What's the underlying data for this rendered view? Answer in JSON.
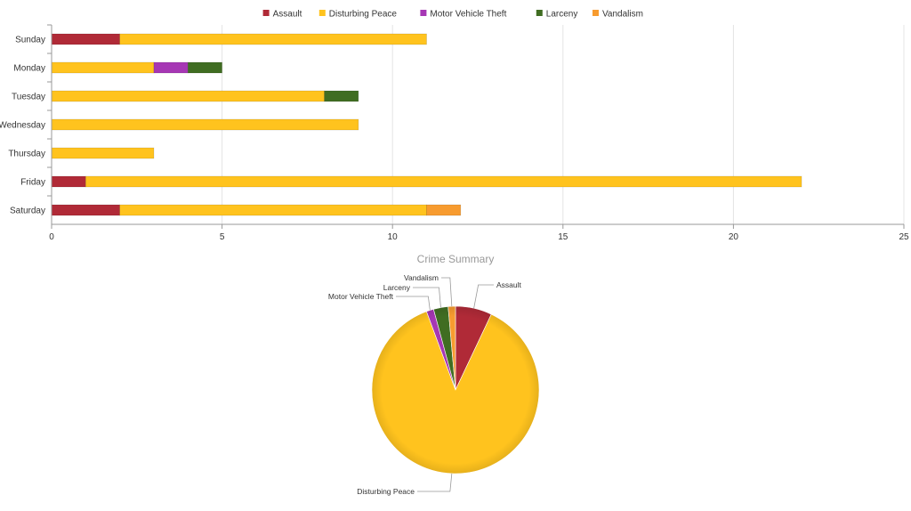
{
  "colors": {
    "Assault": "#b02a37",
    "Disturbing Peace": "#ffc31e",
    "Motor Vehicle Theft": "#a637b4",
    "Larceny": "#406d22",
    "Vandalism": "#f79b2f"
  },
  "chart_data": [
    {
      "type": "bar",
      "orientation": "horizontal",
      "stacked": true,
      "title": "",
      "xlabel": "",
      "ylabel": "",
      "categories": [
        "Sunday",
        "Monday",
        "Tuesday",
        "Wednesday",
        "Thursday",
        "Friday",
        "Saturday"
      ],
      "series": [
        {
          "name": "Assault",
          "values": [
            2,
            0,
            0,
            0,
            0,
            1,
            2
          ]
        },
        {
          "name": "Disturbing Peace",
          "values": [
            9,
            3,
            8,
            9,
            3,
            21,
            9
          ]
        },
        {
          "name": "Motor Vehicle Theft",
          "values": [
            0,
            1,
            0,
            0,
            0,
            0,
            0
          ]
        },
        {
          "name": "Larceny",
          "values": [
            0,
            1,
            1,
            0,
            0,
            0,
            0
          ]
        },
        {
          "name": "Vandalism",
          "values": [
            0,
            0,
            0,
            0,
            0,
            0,
            1
          ]
        }
      ],
      "xlim": [
        0,
        25
      ],
      "xticks": [
        0,
        5,
        10,
        15,
        20,
        25
      ],
      "grid": true,
      "legend": "top-center"
    },
    {
      "type": "pie",
      "title": "Crime Summary",
      "labels": [
        "Assault",
        "Disturbing Peace",
        "Motor Vehicle Theft",
        "Larceny",
        "Vandalism"
      ],
      "values": [
        5,
        62,
        1,
        2,
        1
      ]
    }
  ]
}
